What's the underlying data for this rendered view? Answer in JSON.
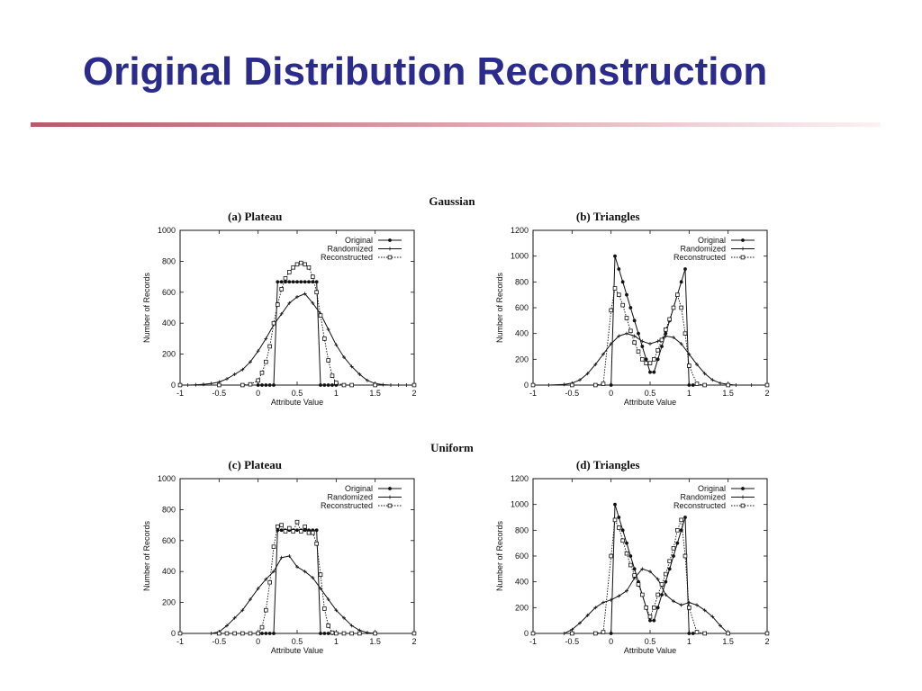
{
  "slide": {
    "title": "Original Distribution Reconstruction"
  },
  "groups": {
    "top": "Gaussian",
    "bottom": "Uniform"
  },
  "colors": {
    "title": "#2b2b8c",
    "rule": "#c0707f",
    "ink": "#111111"
  },
  "chart_data": [
    {
      "type": "line",
      "title": "(a) Plateau",
      "xlabel": "Attribute Value",
      "ylabel": "Number of Records",
      "xlim": [
        -1,
        2
      ],
      "ylim": [
        0,
        1000
      ],
      "xticks": [
        -1,
        -0.5,
        0,
        0.5,
        1,
        1.5,
        2
      ],
      "yticks": [
        0,
        200,
        400,
        600,
        800,
        1000
      ],
      "legend": "top-right",
      "series": [
        {
          "name": "Original",
          "marker": "dot",
          "dash": "solid",
          "x": [
            -1,
            -0.5,
            0,
            0.05,
            0.1,
            0.15,
            0.2,
            0.25,
            0.3,
            0.35,
            0.4,
            0.45,
            0.5,
            0.55,
            0.6,
            0.65,
            0.7,
            0.75,
            0.8,
            0.85,
            0.9,
            0.95,
            1,
            1.5,
            2
          ],
          "y": [
            0,
            0,
            0,
            0,
            0,
            0,
            0,
            667,
            667,
            667,
            667,
            667,
            667,
            667,
            667,
            667,
            667,
            667,
            0,
            0,
            0,
            0,
            0,
            0,
            0
          ]
        },
        {
          "name": "Randomized",
          "marker": "plus",
          "dash": "solid",
          "x": [
            -1,
            -0.9,
            -0.8,
            -0.7,
            -0.6,
            -0.5,
            -0.4,
            -0.3,
            -0.2,
            -0.1,
            0,
            0.1,
            0.2,
            0.3,
            0.4,
            0.5,
            0.6,
            0.7,
            0.8,
            0.9,
            1,
            1.1,
            1.2,
            1.3,
            1.4,
            1.5,
            1.6,
            1.7,
            1.8,
            1.9,
            2
          ],
          "y": [
            0,
            0,
            2,
            5,
            10,
            20,
            40,
            70,
            100,
            150,
            220,
            300,
            390,
            460,
            530,
            570,
            590,
            530,
            460,
            360,
            260,
            180,
            120,
            70,
            30,
            10,
            3,
            0,
            0,
            0,
            0
          ]
        },
        {
          "name": "Reconstructed",
          "marker": "square",
          "dash": "dotted",
          "x": [
            -1,
            -0.5,
            -0.2,
            -0.1,
            0,
            0.05,
            0.1,
            0.15,
            0.2,
            0.25,
            0.3,
            0.35,
            0.4,
            0.45,
            0.5,
            0.55,
            0.6,
            0.65,
            0.7,
            0.75,
            0.8,
            0.85,
            0.9,
            0.95,
            1,
            1.1,
            1.2,
            1.5,
            2
          ],
          "y": [
            0,
            0,
            0,
            5,
            30,
            80,
            150,
            250,
            400,
            520,
            620,
            690,
            730,
            760,
            780,
            790,
            780,
            760,
            700,
            600,
            450,
            300,
            160,
            60,
            15,
            0,
            0,
            0,
            0
          ]
        }
      ]
    },
    {
      "type": "line",
      "title": "(b) Triangles",
      "xlabel": "Attribute Value",
      "ylabel": "Number of Records",
      "xlim": [
        -1,
        2
      ],
      "ylim": [
        0,
        1200
      ],
      "xticks": [
        -1,
        -0.5,
        0,
        0.5,
        1,
        1.5,
        2
      ],
      "yticks": [
        0,
        200,
        400,
        600,
        800,
        1000,
        1200
      ],
      "legend": "top-right",
      "series": [
        {
          "name": "Original",
          "marker": "dot",
          "dash": "solid",
          "x": [
            -1,
            0,
            0.05,
            0.1,
            0.15,
            0.2,
            0.25,
            0.3,
            0.35,
            0.4,
            0.45,
            0.5,
            0.55,
            0.6,
            0.65,
            0.7,
            0.75,
            0.8,
            0.85,
            0.9,
            0.95,
            1,
            1.05,
            2
          ],
          "y": [
            0,
            0,
            1000,
            900,
            800,
            700,
            600,
            500,
            400,
            300,
            200,
            100,
            100,
            200,
            300,
            400,
            500,
            600,
            700,
            800,
            900,
            0,
            0,
            0
          ]
        },
        {
          "name": "Randomized",
          "marker": "plus",
          "dash": "solid",
          "x": [
            -1,
            -0.8,
            -0.6,
            -0.5,
            -0.4,
            -0.3,
            -0.2,
            -0.1,
            0,
            0.1,
            0.2,
            0.3,
            0.4,
            0.5,
            0.6,
            0.7,
            0.8,
            0.9,
            1,
            1.1,
            1.2,
            1.3,
            1.4,
            1.5,
            1.6,
            1.8,
            2
          ],
          "y": [
            0,
            0,
            5,
            15,
            40,
            90,
            160,
            240,
            320,
            380,
            400,
            380,
            340,
            320,
            340,
            380,
            370,
            320,
            240,
            160,
            90,
            40,
            15,
            5,
            0,
            0,
            0
          ]
        },
        {
          "name": "Reconstructed",
          "marker": "square",
          "dash": "dotted",
          "x": [
            -1,
            -0.5,
            -0.2,
            -0.1,
            0,
            0.05,
            0.1,
            0.15,
            0.2,
            0.25,
            0.3,
            0.35,
            0.4,
            0.45,
            0.5,
            0.55,
            0.6,
            0.65,
            0.7,
            0.75,
            0.8,
            0.85,
            0.9,
            0.95,
            1,
            1.1,
            1.2,
            1.5,
            2
          ],
          "y": [
            0,
            0,
            0,
            10,
            580,
            750,
            700,
            620,
            520,
            420,
            330,
            260,
            200,
            170,
            170,
            200,
            270,
            350,
            430,
            510,
            600,
            700,
            600,
            400,
            150,
            10,
            0,
            0,
            0
          ]
        }
      ]
    },
    {
      "type": "line",
      "title": "(c) Plateau",
      "xlabel": "Attribute Value",
      "ylabel": "Number of Records",
      "xlim": [
        -1,
        2
      ],
      "ylim": [
        0,
        1000
      ],
      "xticks": [
        -1,
        -0.5,
        0,
        0.5,
        1,
        1.5,
        2
      ],
      "yticks": [
        0,
        200,
        400,
        600,
        800,
        1000
      ],
      "legend": "top-right",
      "series": [
        {
          "name": "Original",
          "marker": "dot",
          "dash": "solid",
          "x": [
            -1,
            -0.5,
            0,
            0.05,
            0.1,
            0.15,
            0.2,
            0.25,
            0.3,
            0.35,
            0.4,
            0.45,
            0.5,
            0.55,
            0.6,
            0.65,
            0.7,
            0.75,
            0.8,
            0.85,
            0.9,
            0.95,
            1,
            1.5,
            2
          ],
          "y": [
            0,
            0,
            0,
            0,
            0,
            0,
            0,
            667,
            667,
            667,
            667,
            667,
            667,
            667,
            667,
            667,
            667,
            667,
            0,
            0,
            0,
            0,
            0,
            0,
            0
          ]
        },
        {
          "name": "Randomized",
          "marker": "plus",
          "dash": "solid",
          "x": [
            -1,
            -0.6,
            -0.5,
            -0.4,
            -0.3,
            -0.2,
            -0.1,
            0,
            0.1,
            0.2,
            0.3,
            0.4,
            0.5,
            0.6,
            0.7,
            0.8,
            0.9,
            1,
            1.1,
            1.2,
            1.3,
            1.4,
            1.5,
            2
          ],
          "y": [
            0,
            0,
            10,
            50,
            100,
            150,
            220,
            290,
            350,
            400,
            490,
            500,
            430,
            400,
            360,
            290,
            220,
            150,
            100,
            50,
            20,
            5,
            0,
            0
          ]
        },
        {
          "name": "Reconstructed",
          "marker": "square",
          "dash": "dotted",
          "x": [
            -1,
            -0.5,
            -0.4,
            -0.3,
            -0.2,
            -0.1,
            0,
            0.05,
            0.1,
            0.15,
            0.2,
            0.25,
            0.3,
            0.35,
            0.4,
            0.45,
            0.5,
            0.55,
            0.6,
            0.65,
            0.7,
            0.75,
            0.8,
            0.85,
            0.9,
            0.95,
            1,
            1.1,
            1.2,
            1.3,
            1.5,
            2
          ],
          "y": [
            0,
            0,
            0,
            0,
            0,
            0,
            0,
            40,
            150,
            330,
            560,
            690,
            700,
            660,
            680,
            660,
            720,
            660,
            690,
            650,
            650,
            580,
            380,
            160,
            50,
            5,
            0,
            0,
            0,
            0,
            0,
            0
          ]
        }
      ]
    },
    {
      "type": "line",
      "title": "(d) Triangles",
      "xlabel": "Attribute Value",
      "ylabel": "Number of Records",
      "xlim": [
        -1,
        2
      ],
      "ylim": [
        0,
        1200
      ],
      "xticks": [
        -1,
        -0.5,
        0,
        0.5,
        1,
        1.5,
        2
      ],
      "yticks": [
        0,
        200,
        400,
        600,
        800,
        1000,
        1200
      ],
      "legend": "top-right",
      "series": [
        {
          "name": "Original",
          "marker": "dot",
          "dash": "solid",
          "x": [
            -1,
            0,
            0.05,
            0.1,
            0.15,
            0.2,
            0.25,
            0.3,
            0.35,
            0.4,
            0.45,
            0.5,
            0.55,
            0.6,
            0.65,
            0.7,
            0.75,
            0.8,
            0.85,
            0.9,
            0.95,
            1,
            1.05,
            2
          ],
          "y": [
            0,
            0,
            1000,
            900,
            800,
            700,
            600,
            500,
            400,
            300,
            200,
            100,
            100,
            200,
            300,
            400,
            500,
            600,
            700,
            800,
            900,
            0,
            0,
            0
          ]
        },
        {
          "name": "Randomized",
          "marker": "plus",
          "dash": "solid",
          "x": [
            -1,
            -0.6,
            -0.5,
            -0.4,
            -0.3,
            -0.2,
            -0.1,
            0,
            0.1,
            0.2,
            0.3,
            0.4,
            0.5,
            0.6,
            0.7,
            0.8,
            0.9,
            1,
            1.1,
            1.2,
            1.3,
            1.4,
            1.5,
            2
          ],
          "y": [
            0,
            0,
            30,
            80,
            140,
            200,
            240,
            260,
            290,
            330,
            430,
            500,
            480,
            420,
            300,
            250,
            220,
            240,
            220,
            180,
            130,
            60,
            0,
            0
          ]
        },
        {
          "name": "Reconstructed",
          "marker": "square",
          "dash": "dotted",
          "x": [
            -1,
            -0.5,
            -0.2,
            -0.1,
            0,
            0.05,
            0.1,
            0.15,
            0.2,
            0.25,
            0.3,
            0.35,
            0.4,
            0.45,
            0.5,
            0.55,
            0.6,
            0.65,
            0.7,
            0.75,
            0.8,
            0.85,
            0.9,
            0.95,
            1,
            1.1,
            1.2,
            1.5,
            2
          ],
          "y": [
            0,
            0,
            0,
            10,
            600,
            880,
            820,
            720,
            620,
            530,
            450,
            380,
            300,
            200,
            130,
            200,
            300,
            380,
            460,
            560,
            660,
            800,
            880,
            600,
            200,
            10,
            0,
            0,
            0
          ]
        }
      ]
    }
  ]
}
